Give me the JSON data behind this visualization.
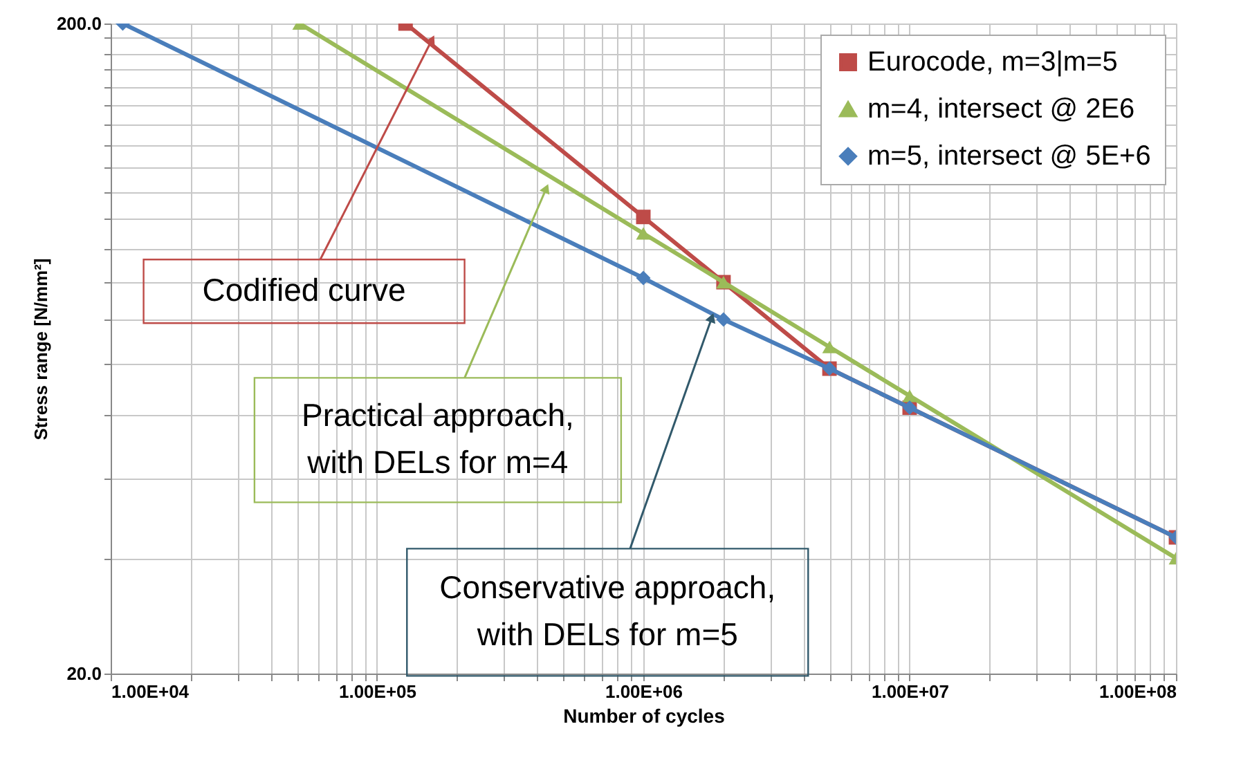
{
  "chart_data": {
    "type": "line",
    "xlabel": "Number of cycles",
    "ylabel": "Stress range [N/mm²]",
    "log": "xy",
    "grid": true,
    "legend": "top right",
    "xlim": [
      10000,
      100000000
    ],
    "ylim": [
      20,
      200
    ],
    "xticks": [
      {
        "value": 10000,
        "label": "1.00E+04"
      },
      {
        "value": 20000,
        "label": null
      },
      {
        "value": 30000,
        "label": null
      },
      {
        "value": 40000,
        "label": null
      },
      {
        "value": 50000,
        "label": null
      },
      {
        "value": 60000,
        "label": null
      },
      {
        "value": 70000,
        "label": null
      },
      {
        "value": 80000,
        "label": null
      },
      {
        "value": 90000,
        "label": null
      },
      {
        "value": 100000,
        "label": "1.00E+05"
      },
      {
        "value": 200000,
        "label": null
      },
      {
        "value": 300000,
        "label": null
      },
      {
        "value": 400000,
        "label": null
      },
      {
        "value": 500000,
        "label": null
      },
      {
        "value": 600000,
        "label": null
      },
      {
        "value": 700000,
        "label": null
      },
      {
        "value": 800000,
        "label": null
      },
      {
        "value": 900000,
        "label": null
      },
      {
        "value": 1000000,
        "label": "1.00E+06"
      },
      {
        "value": 2000000,
        "label": null
      },
      {
        "value": 3000000,
        "label": null
      },
      {
        "value": 4000000,
        "label": null
      },
      {
        "value": 5000000,
        "label": null
      },
      {
        "value": 6000000,
        "label": null
      },
      {
        "value": 7000000,
        "label": null
      },
      {
        "value": 8000000,
        "label": null
      },
      {
        "value": 9000000,
        "label": null
      },
      {
        "value": 10000000,
        "label": "1.00E+07"
      },
      {
        "value": 20000000,
        "label": null
      },
      {
        "value": 30000000,
        "label": null
      },
      {
        "value": 40000000,
        "label": null
      },
      {
        "value": 50000000,
        "label": null
      },
      {
        "value": 60000000,
        "label": null
      },
      {
        "value": 70000000,
        "label": null
      },
      {
        "value": 80000000,
        "label": null
      },
      {
        "value": 90000000,
        "label": null
      },
      {
        "value": 100000000,
        "label": "1.00E+08"
      }
    ],
    "yticks": [
      {
        "value": 20,
        "label": "20.0"
      },
      {
        "value": 30,
        "label": null
      },
      {
        "value": 40,
        "label": null
      },
      {
        "value": 50,
        "label": null
      },
      {
        "value": 60,
        "label": null
      },
      {
        "value": 70,
        "label": null
      },
      {
        "value": 80,
        "label": null
      },
      {
        "value": 90,
        "label": null
      },
      {
        "value": 100,
        "label": null
      },
      {
        "value": 110,
        "label": null
      },
      {
        "value": 120,
        "label": null
      },
      {
        "value": 130,
        "label": null
      },
      {
        "value": 140,
        "label": null
      },
      {
        "value": 150,
        "label": null
      },
      {
        "value": 160,
        "label": null
      },
      {
        "value": 170,
        "label": null
      },
      {
        "value": 180,
        "label": null
      },
      {
        "value": 190,
        "label": null
      },
      {
        "value": 200,
        "label": "200.0"
      }
    ],
    "series": [
      {
        "name": "Eurocode, m=3|m=5",
        "color": "#be4b48",
        "marker": "square",
        "x": [
          128000,
          1000000,
          2000000,
          5000000,
          10000000,
          100000000
        ],
        "values": [
          200,
          100.8,
          80,
          58.9,
          51.3,
          32.4
        ]
      },
      {
        "name": "m=4, intersect @ 2E6",
        "color": "#9bbb59",
        "marker": "triangle",
        "x": [
          51200,
          1000000,
          2000000,
          5000000,
          10000000,
          100000000
        ],
        "values": [
          200,
          95.1,
          80,
          63.6,
          53.5,
          30.1
        ]
      },
      {
        "name": "m=5, intersect @ 5E+6",
        "color": "#4a7ebb",
        "marker": "diamond",
        "x": [
          11100,
          1000000,
          2000000,
          5000000,
          10000000,
          100000000
        ],
        "values": [
          200,
          81.2,
          70.1,
          58.9,
          51.3,
          32.4
        ]
      }
    ],
    "annotations": [
      {
        "text": "Codified curve",
        "x": 160000,
        "y": 188
      },
      {
        "text": "Practical approach,\nwith DELs for m=4",
        "x": 430000,
        "y": 111
      },
      {
        "text": "Conservative approach,\nwith DELs for m=5",
        "x": 1800000,
        "y": 70.2
      }
    ]
  }
}
